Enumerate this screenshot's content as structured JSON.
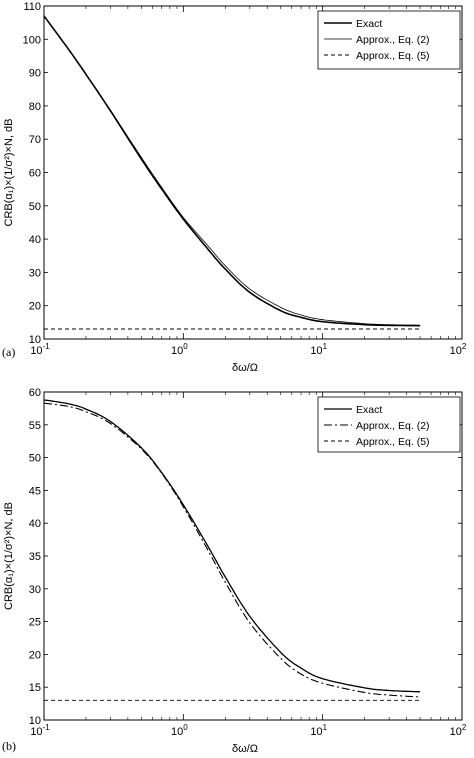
{
  "chart_data": [
    {
      "type": "line",
      "panel_label": "(a)",
      "xlabel": "δω/Ω",
      "ylabel": "CRB(α₁)×(1/σ²)×N,  dB",
      "x_scale": "log",
      "xlim": [
        0.1,
        100
      ],
      "ylim": [
        10,
        110
      ],
      "x_ticks": [
        {
          "value": 0.1,
          "base": "10",
          "exp": "-1"
        },
        {
          "value": 1,
          "base": "10",
          "exp": "0"
        },
        {
          "value": 10,
          "base": "10",
          "exp": "1"
        },
        {
          "value": 100,
          "base": "10",
          "exp": "2"
        }
      ],
      "y_ticks": [
        10,
        20,
        30,
        40,
        50,
        60,
        70,
        80,
        90,
        100,
        110
      ],
      "grid": false,
      "legend_position": "top-right",
      "series": [
        {
          "name": "Exact",
          "style": "solid-thick",
          "x": [
            0.1,
            0.15,
            0.2,
            0.3,
            0.5,
            0.7,
            1.0,
            1.5,
            2.0,
            3.0,
            5.0,
            7.0,
            10,
            20,
            30,
            50
          ],
          "y": [
            107,
            97,
            89.5,
            78.5,
            64,
            55,
            46,
            37,
            31,
            24,
            18.5,
            16.5,
            15.2,
            14.3,
            14.1,
            14.0
          ]
        },
        {
          "name": "Approx., Eq. (2)",
          "style": "solid-thin",
          "x": [
            0.1,
            0.15,
            0.2,
            0.3,
            0.5,
            0.7,
            1.0,
            1.5,
            2.0,
            3.0,
            5.0,
            7.0,
            10,
            20,
            30,
            50
          ],
          "y": [
            107,
            97,
            89.5,
            78.7,
            64.5,
            55.5,
            46.5,
            38,
            32,
            25,
            19.5,
            17.2,
            15.8,
            14.6,
            14.3,
            14.1
          ]
        },
        {
          "name": "Approx., Eq. (5)",
          "style": "dashed",
          "x": [
            0.1,
            50
          ],
          "y": [
            13,
            13
          ]
        }
      ]
    },
    {
      "type": "line",
      "panel_label": "(b)",
      "xlabel": "δω/Ω",
      "ylabel": "CRB(α₁)×(1/σ²)×N,  dB",
      "x_scale": "log",
      "xlim": [
        0.1,
        100
      ],
      "ylim": [
        10,
        60
      ],
      "x_ticks": [
        {
          "value": 0.1,
          "base": "10",
          "exp": "-1"
        },
        {
          "value": 1,
          "base": "10",
          "exp": "0"
        },
        {
          "value": 10,
          "base": "10",
          "exp": "1"
        },
        {
          "value": 100,
          "base": "10",
          "exp": "2"
        }
      ],
      "y_ticks": [
        10,
        15,
        20,
        25,
        30,
        35,
        40,
        45,
        50,
        55,
        60
      ],
      "grid": false,
      "legend_position": "top-right",
      "series": [
        {
          "name": "Exact",
          "style": "solid",
          "x": [
            0.1,
            0.15,
            0.2,
            0.3,
            0.5,
            0.7,
            1.0,
            1.5,
            2.0,
            3.0,
            5.0,
            7.0,
            10,
            20,
            30,
            50
          ],
          "y": [
            58.8,
            58.2,
            57.4,
            55.5,
            51.5,
            47.7,
            42.8,
            36.5,
            31.8,
            25.8,
            20.3,
            17.9,
            16.3,
            14.9,
            14.5,
            14.3
          ]
        },
        {
          "name": "Approx., Eq. (2)",
          "style": "dash-dot",
          "x": [
            0.1,
            0.15,
            0.2,
            0.3,
            0.5,
            0.7,
            1.0,
            1.5,
            2.0,
            3.0,
            5.0,
            7.0,
            10,
            20,
            30,
            50
          ],
          "y": [
            58.3,
            57.8,
            57.0,
            55.2,
            51.3,
            47.6,
            42.5,
            35.9,
            31.0,
            24.8,
            19.4,
            17.0,
            15.6,
            14.2,
            13.8,
            13.5
          ]
        },
        {
          "name": "Approx., Eq. (5)",
          "style": "dashed",
          "x": [
            0.1,
            50
          ],
          "y": [
            13,
            13
          ]
        }
      ]
    }
  ]
}
